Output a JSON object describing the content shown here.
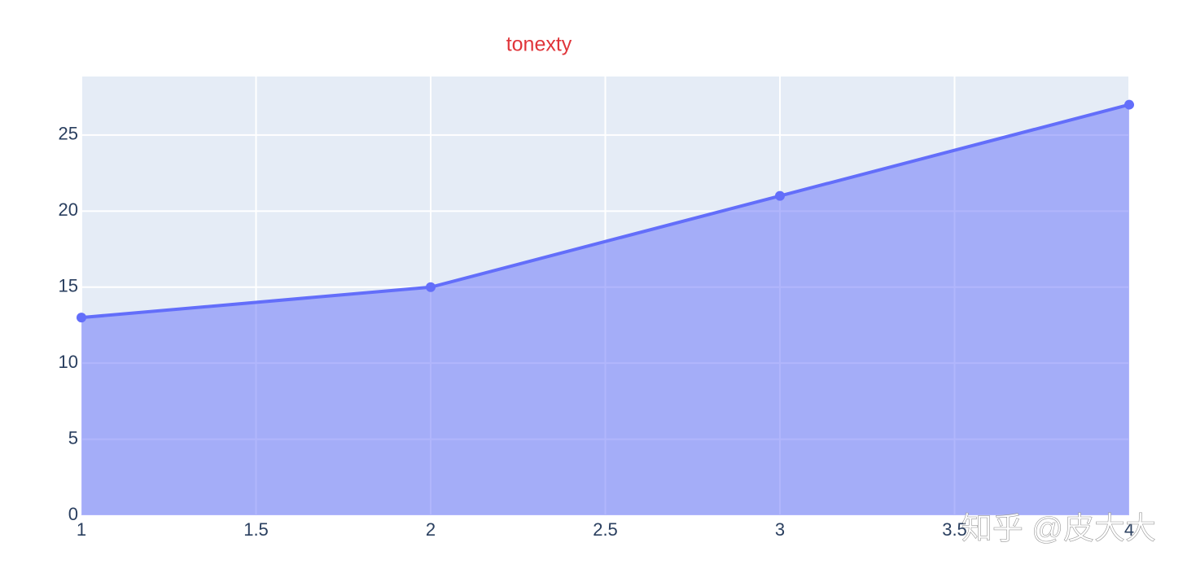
{
  "chart_data": {
    "type": "area",
    "title": "tonexty",
    "x": [
      1,
      2,
      3,
      4
    ],
    "series": [
      {
        "color": "#636efa",
        "values": [
          13,
          15,
          21,
          27
        ]
      }
    ],
    "xlim": [
      1,
      4
    ],
    "ylim": [
      0,
      28.85
    ],
    "xticks": [
      1,
      1.5,
      2,
      2.5,
      3,
      3.5,
      4
    ],
    "yticks": [
      0,
      5,
      10,
      15,
      20,
      25
    ],
    "grid": true,
    "fill": "tonexty",
    "watermark": "知乎 @皮大大"
  }
}
